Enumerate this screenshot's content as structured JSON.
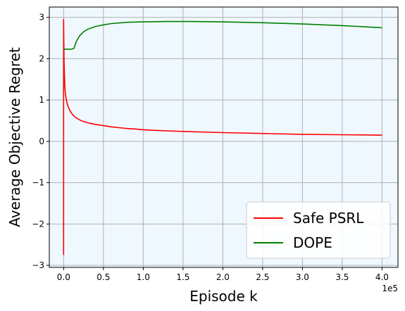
{
  "chart_data": {
    "type": "line",
    "title": "",
    "xlabel": "Episode k",
    "ylabel": "Average Objective Regret",
    "x_offset_label": "1e5",
    "xlim": [
      -18000,
      420000
    ],
    "ylim": [
      -3.05,
      3.25
    ],
    "x_ticks": [
      0,
      50000,
      100000,
      150000,
      200000,
      250000,
      300000,
      350000,
      400000
    ],
    "x_tick_labels": [
      "0.0",
      "0.5",
      "1.0",
      "1.5",
      "2.0",
      "2.5",
      "3.0",
      "3.5",
      "4.0"
    ],
    "y_ticks": [
      -3,
      -2,
      -1,
      0,
      1,
      2,
      3
    ],
    "y_tick_labels": [
      "−3",
      "−2",
      "−1",
      "0",
      "1",
      "2",
      "3"
    ],
    "grid": true,
    "background_color": "#f0f8ff",
    "legend_position": "lower-right",
    "series": [
      {
        "name": "Safe PSRL",
        "color": "#ff0000",
        "x": [
          0,
          0,
          300,
          600,
          1000,
          1500,
          2000,
          3000,
          4000,
          5000,
          6000,
          8000,
          10000,
          12000,
          15000,
          20000,
          25000,
          30000,
          40000,
          50000,
          60000,
          70000,
          80000,
          90000,
          100000,
          120000,
          150000,
          200000,
          250000,
          300000,
          350000,
          400000
        ],
        "y": [
          -2.75,
          2.95,
          2.3,
          1.9,
          1.6,
          1.35,
          1.2,
          1.05,
          0.95,
          0.88,
          0.82,
          0.74,
          0.68,
          0.63,
          0.58,
          0.52,
          0.48,
          0.45,
          0.41,
          0.38,
          0.35,
          0.33,
          0.31,
          0.3,
          0.28,
          0.26,
          0.24,
          0.21,
          0.19,
          0.17,
          0.16,
          0.15
        ]
      },
      {
        "name": "DOPE",
        "color": "#008000",
        "x": [
          0,
          10000,
          13000,
          16000,
          20000,
          25000,
          30000,
          40000,
          50000,
          60000,
          80000,
          100000,
          130000,
          160000,
          200000,
          250000,
          300000,
          350000,
          400000
        ],
        "y": [
          2.23,
          2.23,
          2.25,
          2.42,
          2.55,
          2.65,
          2.71,
          2.78,
          2.82,
          2.85,
          2.88,
          2.89,
          2.9,
          2.9,
          2.89,
          2.87,
          2.84,
          2.8,
          2.75
        ]
      }
    ]
  }
}
